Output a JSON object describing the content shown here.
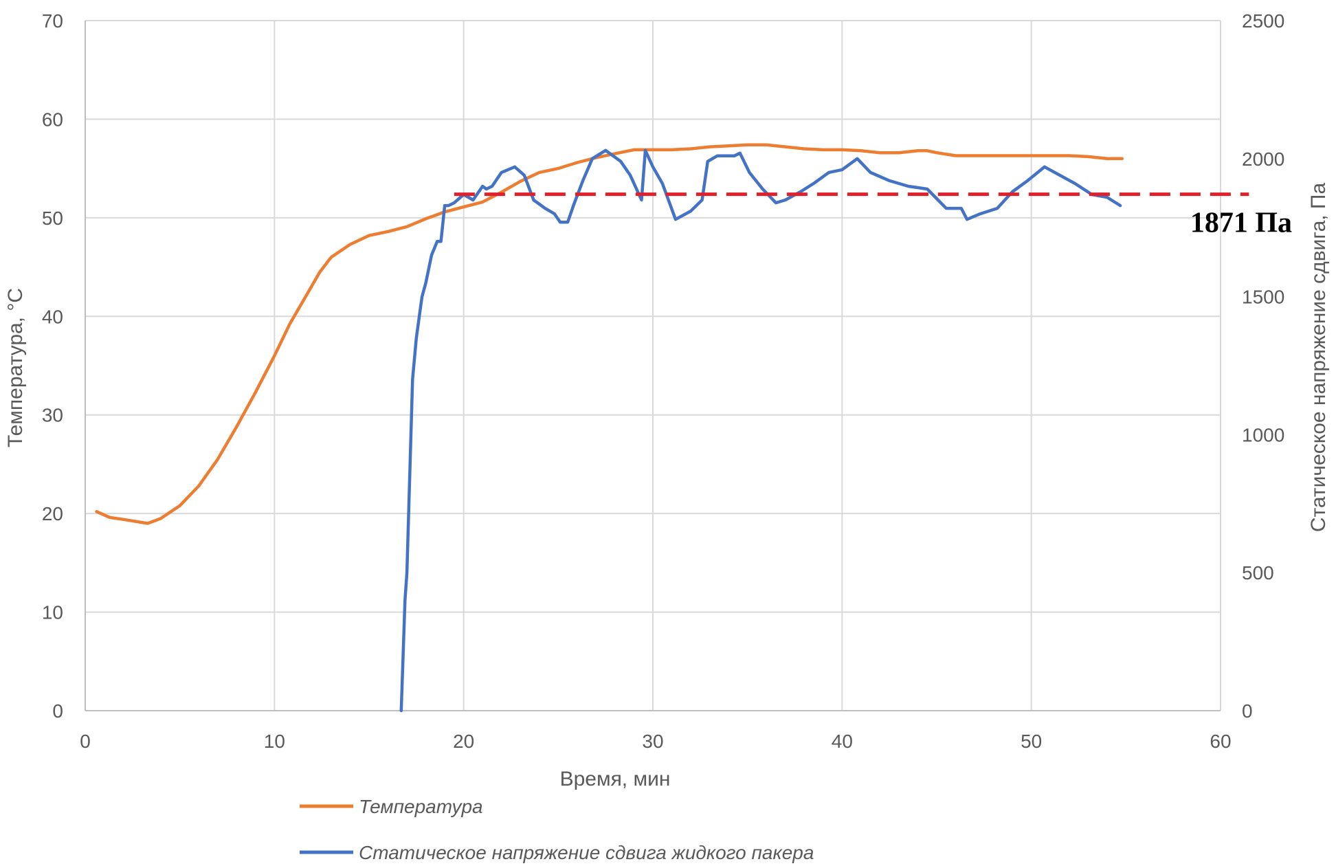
{
  "chart_data": {
    "type": "line",
    "xlabel": "Время, мин",
    "ylabel_left": "Температура, °C",
    "ylabel_right": "Статическое напряжение сдвига, Па",
    "xlim": [
      0,
      60
    ],
    "ylim_left": [
      0,
      70
    ],
    "ylim_right": [
      0,
      2500
    ],
    "x_ticks": [
      0,
      10,
      20,
      30,
      40,
      50,
      60
    ],
    "y_ticks_left": [
      0,
      10,
      20,
      30,
      40,
      50,
      60,
      70
    ],
    "y_ticks_right": [
      0,
      500,
      1000,
      1500,
      2000,
      2500
    ],
    "grid": true,
    "legend_position": "bottom-center",
    "reference_line": {
      "value": 1871,
      "axis": "right",
      "x_start": 19.5,
      "x_end": 61.5,
      "label": "1871 Па",
      "color": "#e0202a"
    },
    "series": [
      {
        "name": "Температура",
        "axis": "left",
        "color": "#ed7d31",
        "x": [
          0.6,
          1.3,
          2.0,
          3.3,
          4.0,
          5.0,
          6.0,
          7.0,
          8.0,
          9.0,
          10.0,
          10.8,
          11.8,
          12.4,
          13.0,
          14.0,
          15.0,
          16.0,
          17.0,
          18.0,
          19.0,
          20.0,
          21.0,
          22.0,
          23.0,
          24.0,
          25.0,
          26.0,
          27.0,
          28.0,
          29.0,
          30.0,
          31.0,
          32.0,
          33.0,
          34.0,
          35.0,
          36.0,
          37.0,
          38.0,
          39.0,
          40.0,
          41.0,
          42.0,
          43.0,
          44.0,
          44.5,
          45.0,
          46.0,
          47.0,
          48.0,
          49.0,
          50.0,
          51.0,
          52.0,
          53.0,
          54.0,
          54.8
        ],
        "values": [
          20.2,
          19.6,
          19.4,
          19.0,
          19.5,
          20.8,
          22.8,
          25.5,
          28.8,
          32.3,
          36.0,
          39.2,
          42.5,
          44.5,
          46.0,
          47.3,
          48.2,
          48.6,
          49.1,
          49.9,
          50.6,
          51.1,
          51.6,
          52.6,
          53.7,
          54.6,
          55.0,
          55.6,
          56.1,
          56.5,
          56.9,
          56.9,
          56.9,
          57.0,
          57.2,
          57.3,
          57.4,
          57.4,
          57.2,
          57.0,
          56.9,
          56.9,
          56.8,
          56.6,
          56.6,
          56.8,
          56.8,
          56.6,
          56.3,
          56.3,
          56.3,
          56.3,
          56.3,
          56.3,
          56.3,
          56.2,
          56.0,
          56.0
        ]
      },
      {
        "name": "Статическое напряжение сдвига жидкого пакера",
        "axis": "right",
        "color": "#4472c4",
        "x": [
          16.7,
          16.9,
          17.0,
          17.3,
          17.5,
          17.7,
          17.8,
          18.0,
          18.3,
          18.6,
          18.8,
          19.0,
          19.2,
          19.5,
          20.0,
          20.5,
          21.0,
          21.2,
          21.5,
          22.0,
          22.7,
          23.2,
          23.7,
          24.3,
          24.8,
          25.1,
          25.5,
          25.8,
          26.3,
          26.8,
          27.5,
          28.3,
          28.8,
          29.4,
          29.6,
          30.0,
          30.5,
          31.2,
          32.0,
          32.6,
          32.9,
          33.4,
          33.8,
          34.3,
          34.6,
          35.1,
          35.8,
          36.5,
          37.0,
          37.8,
          38.5,
          39.3,
          40.0,
          40.8,
          41.5,
          42.5,
          43.5,
          44.5,
          45.5,
          46.3,
          46.6,
          47.3,
          48.2,
          49.0,
          49.8,
          50.7,
          51.5,
          52.3,
          53.2,
          54.0,
          54.7
        ],
        "values": [
          0,
          400,
          500,
          1200,
          1350,
          1450,
          1500,
          1550,
          1650,
          1700,
          1700,
          1830,
          1830,
          1840,
          1870,
          1850,
          1900,
          1890,
          1900,
          1950,
          1970,
          1940,
          1850,
          1820,
          1800,
          1770,
          1770,
          1830,
          1920,
          2000,
          2030,
          1990,
          1940,
          1850,
          2030,
          1970,
          1910,
          1780,
          1810,
          1850,
          1990,
          2010,
          2010,
          2010,
          2020,
          1950,
          1890,
          1840,
          1850,
          1880,
          1910,
          1950,
          1960,
          2000,
          1950,
          1920,
          1900,
          1890,
          1820,
          1820,
          1780,
          1800,
          1820,
          1880,
          1920,
          1970,
          1940,
          1910,
          1870,
          1860,
          1830
        ]
      }
    ]
  }
}
